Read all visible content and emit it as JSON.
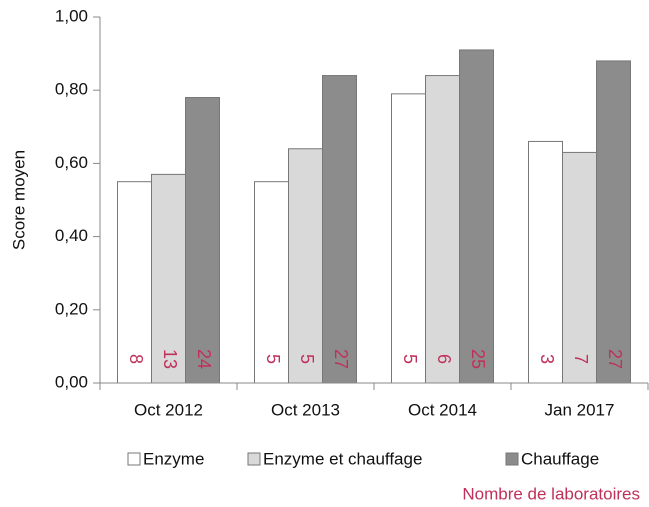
{
  "chart_data": {
    "type": "bar",
    "y_label": "Score moyen",
    "categories": [
      "Oct 2012",
      "Oct 2013",
      "Oct 2014",
      "Jan 2017"
    ],
    "series": [
      {
        "name": "Enzyme",
        "color": "#ffffff",
        "values": [
          0.55,
          0.55,
          0.79,
          0.66
        ],
        "counts": [
          8,
          5,
          5,
          3
        ]
      },
      {
        "name": "Enzyme et chauffage",
        "color": "#d9d9d9",
        "values": [
          0.57,
          0.64,
          0.84,
          0.63
        ],
        "counts": [
          13,
          5,
          6,
          7
        ]
      },
      {
        "name": "Chauffage",
        "color": "#8c8c8c",
        "values": [
          0.78,
          0.84,
          0.91,
          0.88
        ],
        "counts": [
          24,
          27,
          25,
          27
        ]
      }
    ],
    "ylim": [
      0,
      1
    ],
    "yticks": [
      {
        "value": 0,
        "label": "0,00"
      },
      {
        "value": 0.2,
        "label": "0,20"
      },
      {
        "value": 0.4,
        "label": "0,40"
      },
      {
        "value": 0.6,
        "label": "0,60"
      },
      {
        "value": 0.8,
        "label": "0,80"
      },
      {
        "value": 1,
        "label": "1,00"
      }
    ],
    "annotation": "Nombre de laboratoires",
    "legend": "bottom"
  }
}
